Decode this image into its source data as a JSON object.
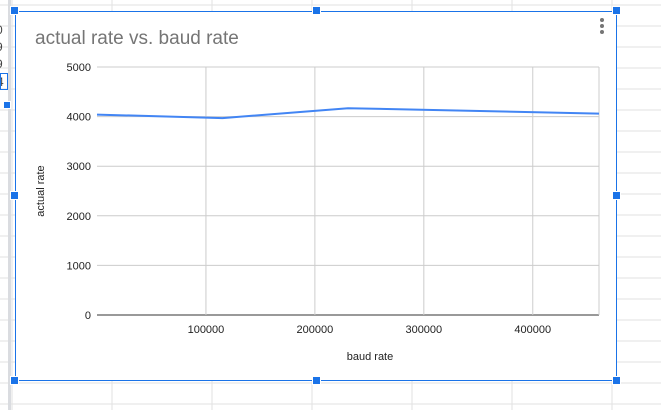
{
  "sheet": {
    "row_fragments": [
      "0",
      "9",
      "9",
      "4"
    ]
  },
  "colors": {
    "selection": "#1a73e8",
    "series_line": "#4285f4",
    "title": "#757575",
    "gridline": "#cccccc"
  },
  "icons": {
    "chart_menu": "more-vert-icon"
  },
  "chart_data": {
    "type": "line",
    "title": "actual rate vs. baud rate",
    "xlabel": "baud rate",
    "ylabel": "actual rate",
    "xlim": [
      0,
      460800
    ],
    "ylim": [
      0,
      5000
    ],
    "x_ticks": [
      100000,
      200000,
      300000,
      400000
    ],
    "x_tick_labels": [
      "100000",
      "200000",
      "300000",
      "400000"
    ],
    "y_ticks": [
      0,
      1000,
      2000,
      3000,
      4000,
      5000
    ],
    "y_tick_labels": [
      "0",
      "1000",
      "2000",
      "3000",
      "4000",
      "5000"
    ],
    "grid": true,
    "legend": "none",
    "series": [
      {
        "x": [
          0,
          115200,
          230400,
          460800
        ],
        "y": [
          4040,
          3970,
          4170,
          4060
        ]
      }
    ]
  }
}
